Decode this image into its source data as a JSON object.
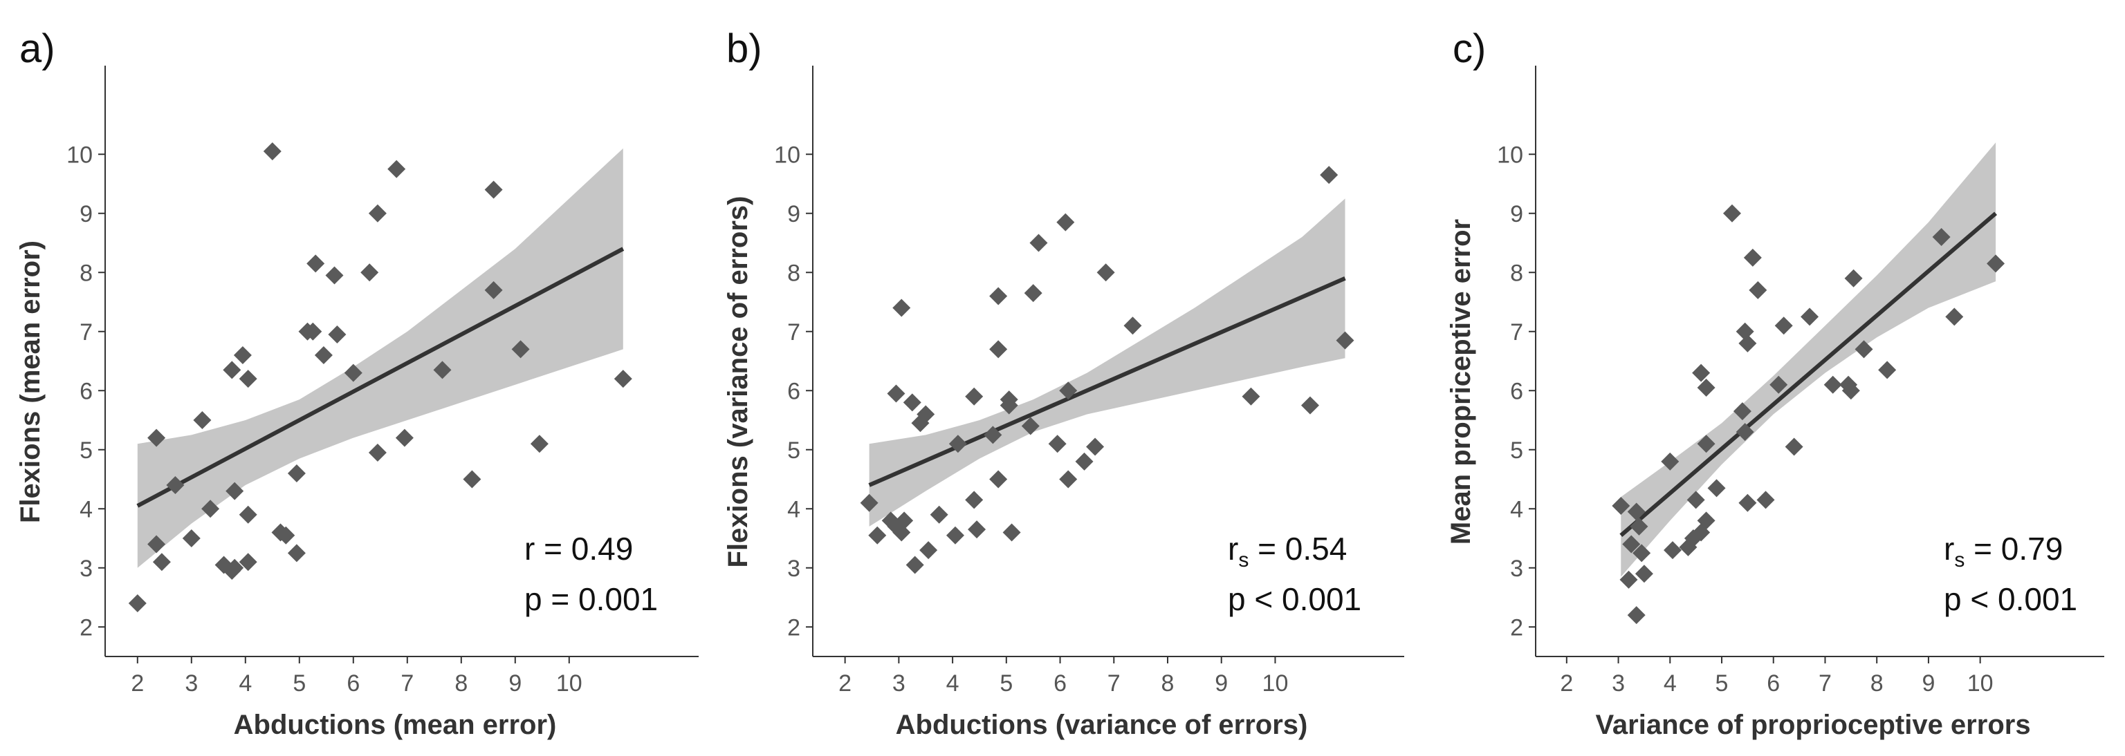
{
  "chart_data": [
    {
      "panel_label": "a)",
      "type": "scatter",
      "xlabel": "Abductions (mean error)",
      "ylabel": "Flexions (mean error)",
      "xlim": [
        1.4,
        12.4
      ],
      "ylim": [
        1.5,
        11.5
      ],
      "xticks": [
        2,
        3,
        4,
        5,
        6,
        7,
        8,
        9,
        10
      ],
      "yticks": [
        2,
        3,
        4,
        5,
        6,
        7,
        8,
        9,
        10
      ],
      "stat_lines": [
        {
          "main": "r = 0.49",
          "sub": ""
        },
        {
          "main": "p = 0.001",
          "sub": ""
        }
      ],
      "fit": {
        "x": [
          2.0,
          11.0
        ],
        "y": [
          4.05,
          8.4
        ]
      },
      "ci_band": {
        "x": [
          2.0,
          3.0,
          4.0,
          5.0,
          6.0,
          7.0,
          8.0,
          9.0,
          10.0,
          11.0
        ],
        "lower": [
          3.0,
          3.75,
          4.4,
          4.85,
          5.2,
          5.5,
          5.8,
          6.1,
          6.4,
          6.7
        ],
        "upper": [
          5.1,
          5.25,
          5.5,
          5.85,
          6.4,
          7.0,
          7.7,
          8.4,
          9.25,
          10.1
        ]
      },
      "points": [
        {
          "x": 2.0,
          "y": 2.4
        },
        {
          "x": 2.35,
          "y": 5.2
        },
        {
          "x": 2.35,
          "y": 3.4
        },
        {
          "x": 2.45,
          "y": 3.1
        },
        {
          "x": 2.7,
          "y": 4.4
        },
        {
          "x": 3.0,
          "y": 3.5
        },
        {
          "x": 3.2,
          "y": 5.5
        },
        {
          "x": 3.35,
          "y": 4.0
        },
        {
          "x": 3.6,
          "y": 3.05
        },
        {
          "x": 3.75,
          "y": 2.95
        },
        {
          "x": 3.8,
          "y": 3.0
        },
        {
          "x": 3.75,
          "y": 6.35
        },
        {
          "x": 3.8,
          "y": 4.3
        },
        {
          "x": 3.95,
          "y": 6.6
        },
        {
          "x": 4.05,
          "y": 3.9
        },
        {
          "x": 4.05,
          "y": 3.1
        },
        {
          "x": 4.05,
          "y": 6.2
        },
        {
          "x": 4.5,
          "y": 10.05
        },
        {
          "x": 4.65,
          "y": 3.6
        },
        {
          "x": 4.75,
          "y": 3.55
        },
        {
          "x": 4.95,
          "y": 4.6
        },
        {
          "x": 4.95,
          "y": 3.25
        },
        {
          "x": 5.15,
          "y": 7.0
        },
        {
          "x": 5.25,
          "y": 7.0
        },
        {
          "x": 5.3,
          "y": 8.15
        },
        {
          "x": 5.45,
          "y": 6.6
        },
        {
          "x": 5.65,
          "y": 7.95
        },
        {
          "x": 5.7,
          "y": 6.95
        },
        {
          "x": 6.0,
          "y": 6.3
        },
        {
          "x": 6.3,
          "y": 8.0
        },
        {
          "x": 6.45,
          "y": 9.0
        },
        {
          "x": 6.45,
          "y": 4.95
        },
        {
          "x": 6.8,
          "y": 9.75
        },
        {
          "x": 6.95,
          "y": 5.2
        },
        {
          "x": 7.65,
          "y": 6.35
        },
        {
          "x": 8.2,
          "y": 4.5
        },
        {
          "x": 8.6,
          "y": 9.4
        },
        {
          "x": 8.6,
          "y": 7.7
        },
        {
          "x": 9.1,
          "y": 6.7
        },
        {
          "x": 9.45,
          "y": 5.1
        },
        {
          "x": 11.0,
          "y": 6.2
        }
      ]
    },
    {
      "panel_label": "b)",
      "type": "scatter",
      "xlabel": "Abductions (variance of errors)",
      "ylabel": "Flexions (variance of errors)",
      "xlim": [
        1.4,
        12.4
      ],
      "ylim": [
        1.5,
        11.5
      ],
      "xticks": [
        2,
        3,
        4,
        5,
        6,
        7,
        8,
        9,
        10
      ],
      "yticks": [
        2,
        3,
        4,
        5,
        6,
        7,
        8,
        9,
        10
      ],
      "stat_lines": [
        {
          "main": "r",
          "sub": "s",
          "rest": " = 0.54"
        },
        {
          "main": "p < 0.001",
          "sub": ""
        }
      ],
      "fit": {
        "x": [
          2.45,
          11.3
        ],
        "y": [
          4.4,
          7.9
        ]
      },
      "ci_band": {
        "x": [
          2.45,
          3.5,
          4.5,
          5.5,
          6.5,
          7.5,
          8.5,
          9.5,
          10.5,
          11.3
        ],
        "lower": [
          3.7,
          4.3,
          4.85,
          5.3,
          5.6,
          5.8,
          6.0,
          6.2,
          6.4,
          6.55
        ],
        "upper": [
          5.1,
          5.25,
          5.5,
          5.85,
          6.3,
          6.85,
          7.4,
          8.0,
          8.6,
          9.25
        ]
      },
      "points": [
        {
          "x": 2.45,
          "y": 4.1
        },
        {
          "x": 2.6,
          "y": 3.55
        },
        {
          "x": 2.85,
          "y": 3.8
        },
        {
          "x": 2.95,
          "y": 5.95
        },
        {
          "x": 2.95,
          "y": 3.7
        },
        {
          "x": 3.05,
          "y": 3.6
        },
        {
          "x": 3.05,
          "y": 7.4
        },
        {
          "x": 3.1,
          "y": 3.8
        },
        {
          "x": 3.25,
          "y": 5.8
        },
        {
          "x": 3.3,
          "y": 3.05
        },
        {
          "x": 3.4,
          "y": 5.45
        },
        {
          "x": 3.5,
          "y": 5.6
        },
        {
          "x": 3.55,
          "y": 3.3
        },
        {
          "x": 3.75,
          "y": 3.9
        },
        {
          "x": 4.05,
          "y": 3.55
        },
        {
          "x": 4.1,
          "y": 5.1
        },
        {
          "x": 4.4,
          "y": 5.9
        },
        {
          "x": 4.4,
          "y": 4.15
        },
        {
          "x": 4.45,
          "y": 3.65
        },
        {
          "x": 4.75,
          "y": 5.25
        },
        {
          "x": 4.85,
          "y": 7.6
        },
        {
          "x": 4.85,
          "y": 6.7
        },
        {
          "x": 4.85,
          "y": 4.5
        },
        {
          "x": 5.05,
          "y": 5.85
        },
        {
          "x": 5.05,
          "y": 5.75
        },
        {
          "x": 5.1,
          "y": 3.6
        },
        {
          "x": 5.45,
          "y": 5.4
        },
        {
          "x": 5.5,
          "y": 7.65
        },
        {
          "x": 5.6,
          "y": 8.5
        },
        {
          "x": 5.95,
          "y": 5.1
        },
        {
          "x": 6.1,
          "y": 8.85
        },
        {
          "x": 6.15,
          "y": 4.5
        },
        {
          "x": 6.15,
          "y": 6.0
        },
        {
          "x": 6.45,
          "y": 4.8
        },
        {
          "x": 6.65,
          "y": 5.05
        },
        {
          "x": 6.85,
          "y": 8.0
        },
        {
          "x": 7.35,
          "y": 7.1
        },
        {
          "x": 9.55,
          "y": 5.9
        },
        {
          "x": 10.65,
          "y": 5.75
        },
        {
          "x": 11.0,
          "y": 9.65
        },
        {
          "x": 11.3,
          "y": 6.85
        }
      ]
    },
    {
      "panel_label": "c)",
      "type": "scatter",
      "xlabel": "Variance of proprioceptive errors",
      "ylabel": "Mean propriceptive error",
      "xlim": [
        1.4,
        12.4
      ],
      "ylim": [
        1.5,
        11.5
      ],
      "xticks": [
        2,
        3,
        4,
        5,
        6,
        7,
        8,
        9,
        10
      ],
      "yticks": [
        2,
        3,
        4,
        5,
        6,
        7,
        8,
        9,
        10
      ],
      "stat_lines": [
        {
          "main": "r",
          "sub": "s",
          "rest": " = 0.79"
        },
        {
          "main": "p < 0.001",
          "sub": ""
        }
      ],
      "fit": {
        "x": [
          3.05,
          10.3
        ],
        "y": [
          3.55,
          9.0
        ]
      },
      "ci_band": {
        "x": [
          3.05,
          4.0,
          5.0,
          6.0,
          7.0,
          8.0,
          9.0,
          10.3
        ],
        "lower": [
          2.85,
          3.8,
          4.75,
          5.6,
          6.3,
          6.9,
          7.4,
          7.85
        ],
        "upper": [
          4.2,
          4.8,
          5.45,
          6.25,
          7.1,
          7.95,
          8.85,
          10.2
        ]
      },
      "points": [
        {
          "x": 3.05,
          "y": 4.05
        },
        {
          "x": 3.2,
          "y": 2.8
        },
        {
          "x": 3.25,
          "y": 3.4
        },
        {
          "x": 3.35,
          "y": 3.95
        },
        {
          "x": 3.35,
          "y": 2.2
        },
        {
          "x": 3.4,
          "y": 3.7
        },
        {
          "x": 3.45,
          "y": 3.25
        },
        {
          "x": 3.5,
          "y": 2.9
        },
        {
          "x": 4.0,
          "y": 4.8
        },
        {
          "x": 4.05,
          "y": 3.3
        },
        {
          "x": 4.35,
          "y": 3.35
        },
        {
          "x": 4.45,
          "y": 3.5
        },
        {
          "x": 4.5,
          "y": 4.15
        },
        {
          "x": 4.6,
          "y": 3.6
        },
        {
          "x": 4.6,
          "y": 6.3
        },
        {
          "x": 4.7,
          "y": 6.05
        },
        {
          "x": 4.7,
          "y": 5.1
        },
        {
          "x": 4.7,
          "y": 3.8
        },
        {
          "x": 4.9,
          "y": 4.35
        },
        {
          "x": 5.2,
          "y": 9.0
        },
        {
          "x": 5.4,
          "y": 5.65
        },
        {
          "x": 5.45,
          "y": 5.3
        },
        {
          "x": 5.45,
          "y": 7.0
        },
        {
          "x": 5.5,
          "y": 6.8
        },
        {
          "x": 5.5,
          "y": 4.1
        },
        {
          "x": 5.6,
          "y": 8.25
        },
        {
          "x": 5.7,
          "y": 7.7
        },
        {
          "x": 5.85,
          "y": 4.15
        },
        {
          "x": 6.1,
          "y": 6.1
        },
        {
          "x": 6.2,
          "y": 7.1
        },
        {
          "x": 6.4,
          "y": 5.05
        },
        {
          "x": 6.7,
          "y": 7.25
        },
        {
          "x": 7.15,
          "y": 6.1
        },
        {
          "x": 7.45,
          "y": 6.1
        },
        {
          "x": 7.5,
          "y": 6.0
        },
        {
          "x": 7.55,
          "y": 7.9
        },
        {
          "x": 7.75,
          "y": 6.7
        },
        {
          "x": 8.2,
          "y": 6.35
        },
        {
          "x": 9.25,
          "y": 8.6
        },
        {
          "x": 9.5,
          "y": 7.25
        },
        {
          "x": 10.3,
          "y": 8.15
        }
      ]
    }
  ]
}
